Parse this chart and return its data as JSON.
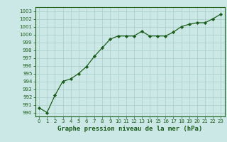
{
  "x": [
    0,
    1,
    2,
    3,
    4,
    5,
    6,
    7,
    8,
    9,
    10,
    11,
    12,
    13,
    14,
    15,
    16,
    17,
    18,
    19,
    20,
    21,
    22,
    23
  ],
  "y": [
    990.6,
    990.0,
    992.2,
    994.0,
    994.3,
    995.0,
    995.9,
    997.2,
    998.3,
    999.4,
    999.8,
    999.8,
    999.8,
    1000.4,
    999.8,
    999.8,
    999.8,
    1000.3,
    1001.0,
    1001.3,
    1001.5,
    1001.5,
    1002.0,
    1002.6
  ],
  "line_color": "#1a5c1a",
  "marker_color": "#1a5c1a",
  "bg_color": "#cce8e6",
  "grid_color": "#a8ceca",
  "xlabel": "Graphe pression niveau de la mer (hPa)",
  "ylim_min": 989.5,
  "ylim_max": 1003.5,
  "xlim_min": -0.5,
  "xlim_max": 23.5,
  "yticks": [
    990,
    991,
    992,
    993,
    994,
    995,
    996,
    997,
    998,
    999,
    1000,
    1001,
    1002,
    1003
  ],
  "xtick_labels": [
    "0",
    "1",
    "2",
    "3",
    "4",
    "5",
    "6",
    "7",
    "8",
    "9",
    "10",
    "11",
    "12",
    "13",
    "14",
    "15",
    "16",
    "17",
    "18",
    "19",
    "20",
    "21",
    "22",
    "23"
  ],
  "tick_fontsize": 5.0,
  "xlabel_fontsize": 6.5,
  "border_color": "#1a5c1a",
  "spine_color": "#1a5c1a",
  "marker_size": 2.2,
  "line_width": 0.9
}
